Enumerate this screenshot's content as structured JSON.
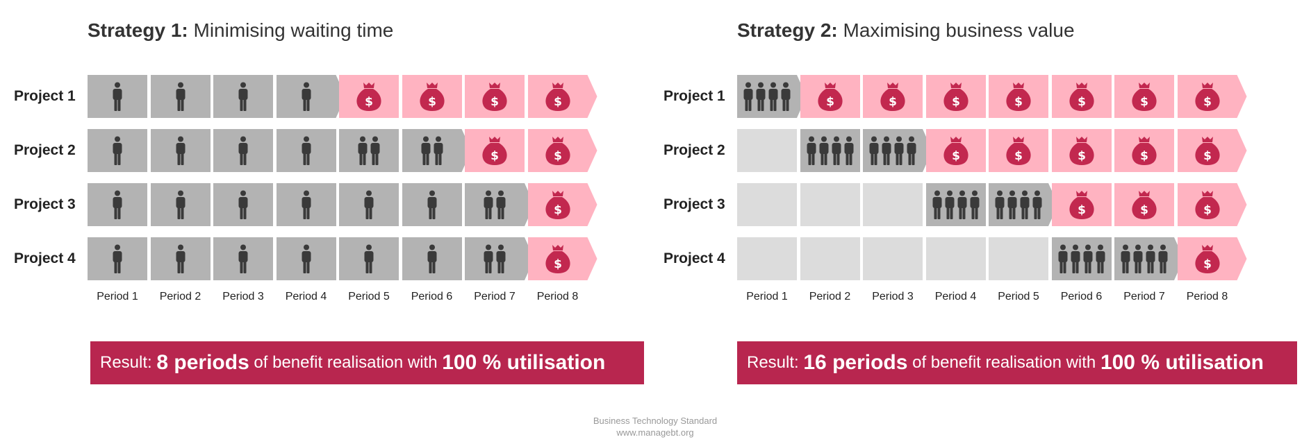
{
  "colors": {
    "stub": "#dcdcdc",
    "work": "#b3b3b3",
    "benefit": "#ffb3c1",
    "person": "#3a3a3a",
    "money_bag": "#c2284f",
    "result_bg": "#b8264f"
  },
  "icons": {
    "work": "person-icon",
    "benefit": "money-bag-icon"
  },
  "periods": [
    "Period 1",
    "Period 2",
    "Period 3",
    "Period 4",
    "Period 5",
    "Period 6",
    "Period 7",
    "Period 8"
  ],
  "strategies": [
    {
      "title_prefix": "Strategy 1:",
      "title_text": "Minimising waiting time",
      "projects": [
        {
          "label": "Project 1",
          "cells": [
            {
              "kind": "work",
              "people": 1
            },
            {
              "kind": "work",
              "people": 1
            },
            {
              "kind": "work",
              "people": 1
            },
            {
              "kind": "work",
              "people": 1
            },
            {
              "kind": "benefit"
            },
            {
              "kind": "benefit"
            },
            {
              "kind": "benefit"
            },
            {
              "kind": "benefit"
            }
          ]
        },
        {
          "label": "Project 2",
          "cells": [
            {
              "kind": "work",
              "people": 1
            },
            {
              "kind": "work",
              "people": 1
            },
            {
              "kind": "work",
              "people": 1
            },
            {
              "kind": "work",
              "people": 1
            },
            {
              "kind": "work",
              "people": 2
            },
            {
              "kind": "work",
              "people": 2
            },
            {
              "kind": "benefit"
            },
            {
              "kind": "benefit"
            }
          ]
        },
        {
          "label": "Project 3",
          "cells": [
            {
              "kind": "work",
              "people": 1
            },
            {
              "kind": "work",
              "people": 1
            },
            {
              "kind": "work",
              "people": 1
            },
            {
              "kind": "work",
              "people": 1
            },
            {
              "kind": "work",
              "people": 1
            },
            {
              "kind": "work",
              "people": 1
            },
            {
              "kind": "work",
              "people": 2
            },
            {
              "kind": "benefit"
            }
          ]
        },
        {
          "label": "Project 4",
          "cells": [
            {
              "kind": "work",
              "people": 1
            },
            {
              "kind": "work",
              "people": 1
            },
            {
              "kind": "work",
              "people": 1
            },
            {
              "kind": "work",
              "people": 1
            },
            {
              "kind": "work",
              "people": 1
            },
            {
              "kind": "work",
              "people": 1
            },
            {
              "kind": "work",
              "people": 2
            },
            {
              "kind": "benefit"
            }
          ]
        }
      ],
      "result": {
        "prefix": "Result:",
        "periods": "8 periods",
        "middle": "of benefit realisation with",
        "utilisation": "100 % utilisation"
      }
    },
    {
      "title_prefix": "Strategy 2:",
      "title_text": "Maximising business value",
      "projects": [
        {
          "label": "Project 1",
          "cells": [
            {
              "kind": "work",
              "people": 4
            },
            {
              "kind": "benefit"
            },
            {
              "kind": "benefit"
            },
            {
              "kind": "benefit"
            },
            {
              "kind": "benefit"
            },
            {
              "kind": "benefit"
            },
            {
              "kind": "benefit"
            },
            {
              "kind": "benefit"
            }
          ]
        },
        {
          "label": "Project 2",
          "cells": [
            {
              "kind": "stub"
            },
            {
              "kind": "work",
              "people": 4
            },
            {
              "kind": "work",
              "people": 4
            },
            {
              "kind": "benefit"
            },
            {
              "kind": "benefit"
            },
            {
              "kind": "benefit"
            },
            {
              "kind": "benefit"
            },
            {
              "kind": "benefit"
            }
          ]
        },
        {
          "label": "Project 3",
          "cells": [
            {
              "kind": "stub"
            },
            {
              "kind": "stub"
            },
            {
              "kind": "stub"
            },
            {
              "kind": "work",
              "people": 4
            },
            {
              "kind": "work",
              "people": 4
            },
            {
              "kind": "benefit"
            },
            {
              "kind": "benefit"
            },
            {
              "kind": "benefit"
            }
          ]
        },
        {
          "label": "Project 4",
          "cells": [
            {
              "kind": "stub"
            },
            {
              "kind": "stub"
            },
            {
              "kind": "stub"
            },
            {
              "kind": "stub"
            },
            {
              "kind": "stub"
            },
            {
              "kind": "work",
              "people": 4
            },
            {
              "kind": "work",
              "people": 4
            },
            {
              "kind": "benefit"
            }
          ]
        }
      ],
      "result": {
        "prefix": "Result:",
        "periods": "16 periods",
        "middle": "of benefit realisation with",
        "utilisation": "100 % utilisation"
      }
    }
  ],
  "footer": {
    "line1": "Business Technology Standard",
    "line2": "www.managebt.org"
  }
}
